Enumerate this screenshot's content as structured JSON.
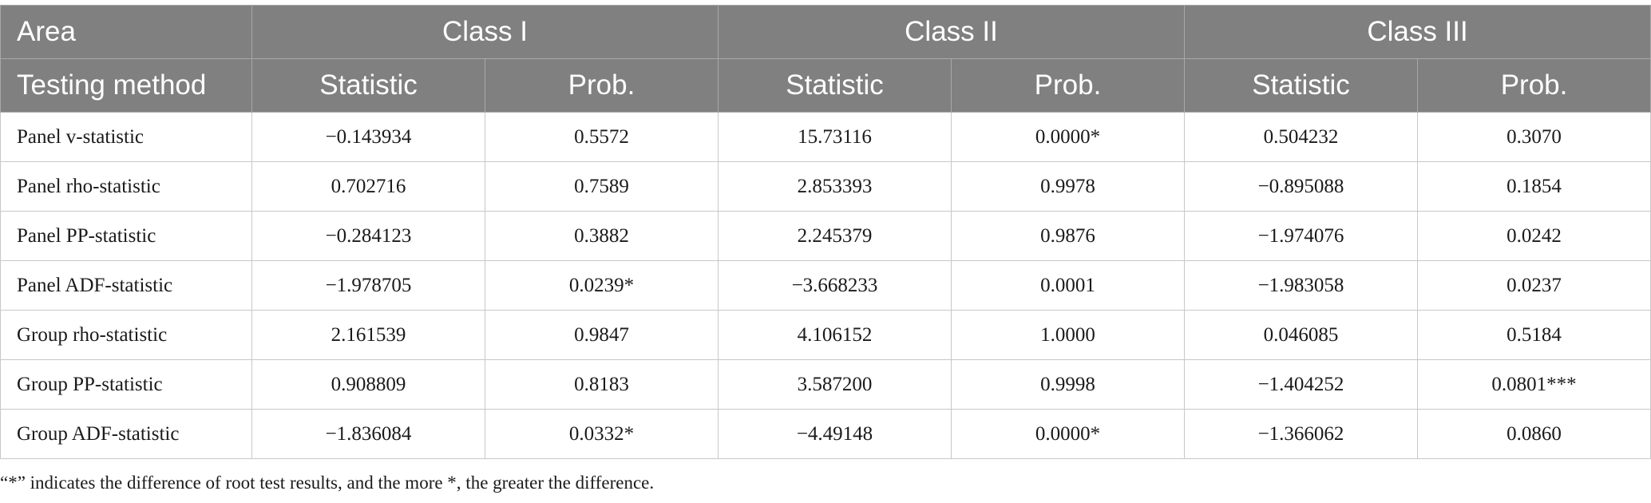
{
  "header": {
    "area_label": "Area",
    "classes": [
      "Class I",
      "Class II",
      "Class III"
    ],
    "method_label": "Testing method",
    "sub_columns": [
      "Statistic",
      "Prob.",
      "Statistic",
      "Prob.",
      "Statistic",
      "Prob."
    ]
  },
  "rows": [
    {
      "method": "Panel v-statistic",
      "values": [
        "−0.143934",
        "0.5572",
        "15.73116",
        "0.0000*",
        "0.504232",
        "0.3070"
      ]
    },
    {
      "method": "Panel rho-statistic",
      "values": [
        "0.702716",
        "0.7589",
        "2.853393",
        "0.9978",
        "−0.895088",
        "0.1854"
      ]
    },
    {
      "method": "Panel PP-statistic",
      "values": [
        "−0.284123",
        "0.3882",
        "2.245379",
        "0.9876",
        "−1.974076",
        "0.0242"
      ]
    },
    {
      "method": "Panel ADF-statistic",
      "values": [
        "−1.978705",
        "0.0239*",
        "−3.668233",
        "0.0001",
        "−1.983058",
        "0.0237"
      ]
    },
    {
      "method": "Group rho-statistic",
      "values": [
        "2.161539",
        "0.9847",
        "4.106152",
        "1.0000",
        "0.046085",
        "0.5184"
      ]
    },
    {
      "method": "Group PP-statistic",
      "values": [
        "0.908809",
        "0.8183",
        "3.587200",
        "0.9998",
        "−1.404252",
        "0.0801***"
      ]
    },
    {
      "method": "Group ADF-statistic",
      "values": [
        "−1.836084",
        "0.0332*",
        "−4.49148",
        "0.0000*",
        "−1.366062",
        "0.0860"
      ]
    }
  ],
  "footnote": "“*” indicates the difference of root test results, and the more *, the greater the difference."
}
